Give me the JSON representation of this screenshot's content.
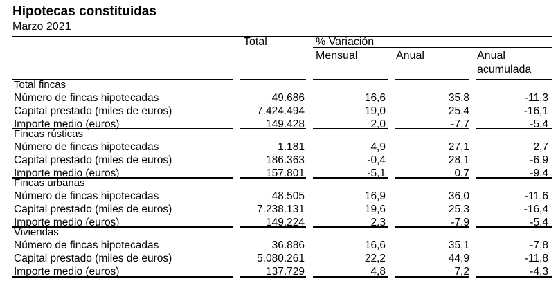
{
  "title": "Hipotecas constituidas",
  "subtitle": "Marzo 2021",
  "headers": {
    "total": "Total",
    "variacion": "% Variación",
    "mensual": "Mensual",
    "anual": "Anual",
    "anual_acumulada_1": "Anual",
    "anual_acumulada_2": "acumulada"
  },
  "sections": [
    {
      "label": "Total fincas",
      "rows": [
        {
          "label": "Número de fincas hipotecadas",
          "total": "49.686",
          "mensual": "16,6",
          "anual": "35,8",
          "acumulada": "-11,3"
        },
        {
          "label": "Capital prestado (miles de euros)",
          "total": "7.424.494",
          "mensual": "19,0",
          "anual": "25,4",
          "acumulada": "-16,1"
        },
        {
          "label": "Importe medio (euros)",
          "total": "149.428",
          "mensual": "2,0",
          "anual": "-7,7",
          "acumulada": "-5,4"
        }
      ]
    },
    {
      "label": "Fincas rústicas",
      "rows": [
        {
          "label": "Número de fincas hipotecadas",
          "total": "1.181",
          "mensual": "4,9",
          "anual": "27,1",
          "acumulada": "2,7"
        },
        {
          "label": "Capital prestado (miles de euros)",
          "total": "186.363",
          "mensual": "-0,4",
          "anual": "28,1",
          "acumulada": "-6,9"
        },
        {
          "label": "Importe medio (euros)",
          "total": "157.801",
          "mensual": "-5,1",
          "anual": "0,7",
          "acumulada": "-9,4"
        }
      ]
    },
    {
      "label": "Fincas urbanas",
      "rows": [
        {
          "label": "Número de fincas hipotecadas",
          "total": "48.505",
          "mensual": "16,9",
          "anual": "36,0",
          "acumulada": "-11,6"
        },
        {
          "label": "Capital prestado (miles de euros)",
          "total": "7.238.131",
          "mensual": "19,6",
          "anual": "25,3",
          "acumulada": "-16,4"
        },
        {
          "label": "Importe medio (euros)",
          "total": "149.224",
          "mensual": "2,3",
          "anual": "-7,9",
          "acumulada": "-5,4"
        }
      ]
    },
    {
      "label": "Viviendas",
      "rows": [
        {
          "label": "Número de fincas hipotecadas",
          "total": "36.886",
          "mensual": "16,6",
          "anual": "35,1",
          "acumulada": "-7,8"
        },
        {
          "label": "Capital prestado (miles de euros)",
          "total": "5.080.261",
          "mensual": "22,2",
          "anual": "44,9",
          "acumulada": "-11,8"
        },
        {
          "label": "Importe medio (euros)",
          "total": "137.729",
          "mensual": "4,8",
          "anual": "7,2",
          "acumulada": "-4,3"
        }
      ]
    }
  ]
}
